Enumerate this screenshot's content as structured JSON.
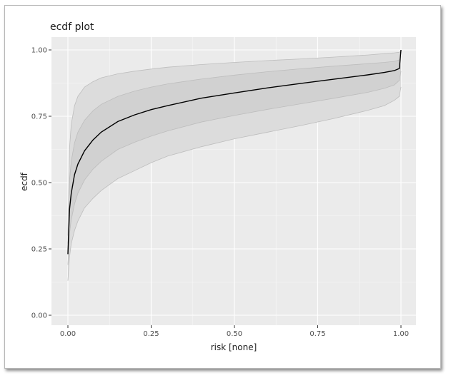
{
  "chart_data": {
    "type": "line",
    "title": "ecdf plot",
    "xlabel": "risk [none]",
    "ylabel": "ecdf",
    "xlim": [
      0,
      1
    ],
    "ylim": [
      0,
      1
    ],
    "x_ticks": [
      0,
      0.25,
      0.5,
      0.75,
      1
    ],
    "x_tick_labels": [
      "0.00",
      "0.25",
      "0.50",
      "0.75",
      "1.00"
    ],
    "y_ticks": [
      0,
      0.25,
      0.5,
      0.75,
      1
    ],
    "y_tick_labels": [
      "0.00",
      "0.25",
      "0.50",
      "0.75",
      "1.00"
    ],
    "grid": true,
    "x": [
      0,
      0.005,
      0.01,
      0.02,
      0.03,
      0.05,
      0.075,
      0.1,
      0.15,
      0.2,
      0.25,
      0.3,
      0.4,
      0.5,
      0.6,
      0.7,
      0.8,
      0.9,
      0.95,
      0.98,
      0.995,
      1.0
    ],
    "series": [
      {
        "role": "line",
        "values": [
          0.23,
          0.4,
          0.46,
          0.53,
          0.57,
          0.62,
          0.66,
          0.69,
          0.73,
          0.755,
          0.775,
          0.79,
          0.818,
          0.838,
          0.857,
          0.874,
          0.89,
          0.906,
          0.915,
          0.922,
          0.93,
          1.0
        ]
      },
      {
        "role": "inner_band_upper",
        "values": [
          0.27,
          0.51,
          0.58,
          0.65,
          0.69,
          0.735,
          0.77,
          0.795,
          0.825,
          0.845,
          0.86,
          0.872,
          0.89,
          0.905,
          0.918,
          0.929,
          0.939,
          0.948,
          0.953,
          0.957,
          0.962,
          0.975
        ]
      },
      {
        "role": "inner_band_lower",
        "values": [
          0.19,
          0.31,
          0.36,
          0.42,
          0.46,
          0.51,
          0.55,
          0.58,
          0.625,
          0.652,
          0.675,
          0.695,
          0.728,
          0.753,
          0.776,
          0.797,
          0.818,
          0.84,
          0.855,
          0.868,
          0.885,
          0.92
        ]
      },
      {
        "role": "outer_band_upper",
        "values": [
          0.3,
          0.63,
          0.72,
          0.79,
          0.825,
          0.86,
          0.88,
          0.895,
          0.91,
          0.92,
          0.928,
          0.935,
          0.945,
          0.953,
          0.96,
          0.966,
          0.973,
          0.981,
          0.986,
          0.989,
          0.991,
          0.995
        ]
      },
      {
        "role": "outer_band_lower",
        "values": [
          0.13,
          0.22,
          0.27,
          0.32,
          0.355,
          0.405,
          0.44,
          0.47,
          0.515,
          0.545,
          0.575,
          0.6,
          0.635,
          0.665,
          0.69,
          0.715,
          0.742,
          0.772,
          0.79,
          0.81,
          0.825,
          0.86
        ]
      }
    ]
  }
}
